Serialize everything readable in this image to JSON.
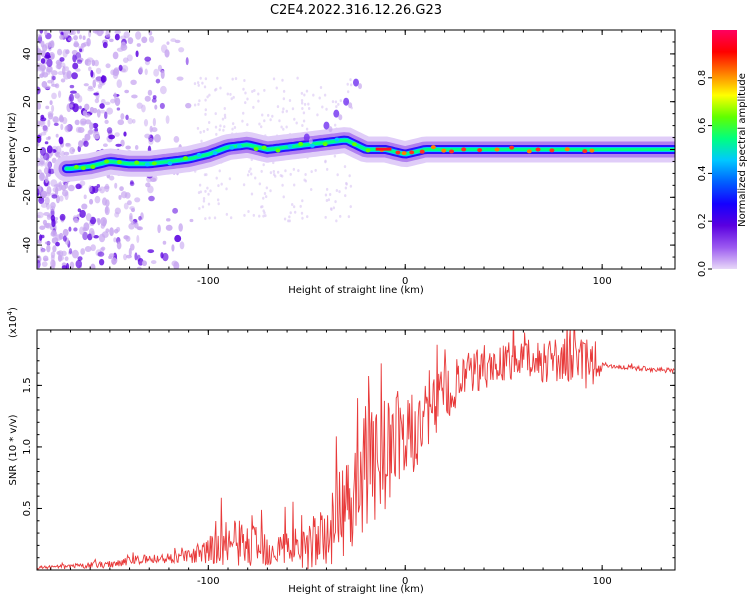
{
  "figure": {
    "title": "C2E4.2022.316.12.26.G23"
  },
  "chart_data": [
    {
      "type": "heatmap",
      "title": "C2E4.2022.316.12.26.G23",
      "xlabel": "Height of straight line (km)",
      "ylabel": "Frequency (Hz)",
      "xlim": [
        -187,
        137
      ],
      "ylim": [
        -50,
        50
      ],
      "xticks": [
        -100,
        0,
        100
      ],
      "yticks": [
        -40,
        -20,
        0,
        20,
        40
      ],
      "colorbar": {
        "label": "Normalized spectral amplitude",
        "range": [
          0,
          1
        ],
        "ticks": [
          "0.0",
          "0.2",
          "0.4",
          "0.6",
          "0.8"
        ],
        "colormap": [
          "#ffffff",
          "#e8d8f8",
          "#9b59f0",
          "#5a00e0",
          "#1400ff",
          "#0060ff",
          "#00c8ff",
          "#00ff80",
          "#60ff00",
          "#ffff00",
          "#ff8000",
          "#ff0000",
          "#ff0060"
        ]
      },
      "ridge": {
        "x": [
          -170,
          -160,
          -150,
          -140,
          -130,
          -120,
          -110,
          -100,
          -90,
          -80,
          -70,
          -60,
          -50,
          -40,
          -30,
          -20,
          -10,
          0,
          10,
          30,
          60,
          90,
          120,
          137
        ],
        "y": [
          -8,
          -7,
          -5,
          -6,
          -6,
          -5,
          -4,
          -2,
          1,
          2,
          0,
          1,
          2,
          3,
          4,
          0,
          0,
          -2,
          0,
          0,
          0,
          0,
          0,
          0
        ]
      },
      "harmonic_branch": {
        "x": [
          -50,
          -40,
          -35,
          -30,
          -25
        ],
        "y": [
          5,
          10,
          15,
          20,
          28
        ]
      }
    },
    {
      "type": "line",
      "xlabel": "Height of straight line (km)",
      "ylabel": "SNR (10 * v/v)",
      "exponent_label": "(x10",
      "exponent_sup": "4",
      "exponent_close": ")",
      "xlim": [
        -187,
        137
      ],
      "ylim": [
        0.0,
        1.95
      ],
      "xticks": [
        -100,
        0,
        100
      ],
      "yticks": [
        "0.5",
        "1.0",
        "1.5"
      ],
      "color": "#e83a3a",
      "series": [
        {
          "envelope_x": [
            -187,
            -170,
            -150,
            -140,
            -120,
            -110,
            -100,
            -90,
            -80,
            -70,
            -60,
            -50,
            -40,
            -35,
            -30,
            -25,
            -20,
            -15,
            -10,
            -5,
            0,
            5,
            10,
            15,
            20,
            25,
            30,
            40,
            50,
            60,
            70,
            80,
            90,
            100,
            110,
            120,
            137
          ],
          "envelope_y": [
            0.02,
            0.03,
            0.05,
            0.08,
            0.1,
            0.12,
            0.15,
            0.25,
            0.22,
            0.2,
            0.2,
            0.22,
            0.3,
            0.4,
            0.6,
            0.75,
            0.85,
            0.95,
            1.0,
            1.1,
            1.1,
            1.15,
            1.25,
            1.35,
            1.45,
            1.5,
            1.58,
            1.65,
            1.7,
            1.72,
            1.72,
            1.72,
            1.7,
            1.67,
            1.65,
            1.64,
            1.62
          ],
          "noise_x": [
            -187,
            -150,
            -110,
            -90,
            -60,
            -40,
            -30,
            -20,
            -10,
            0,
            10,
            20,
            30,
            50,
            70,
            90,
            98,
            100,
            137
          ],
          "noise_y": [
            0.01,
            0.03,
            0.05,
            0.2,
            0.15,
            0.25,
            0.45,
            0.55,
            0.5,
            0.35,
            0.3,
            0.25,
            0.2,
            0.15,
            0.18,
            0.2,
            0.2,
            0.02,
            0.02
          ]
        }
      ]
    }
  ]
}
